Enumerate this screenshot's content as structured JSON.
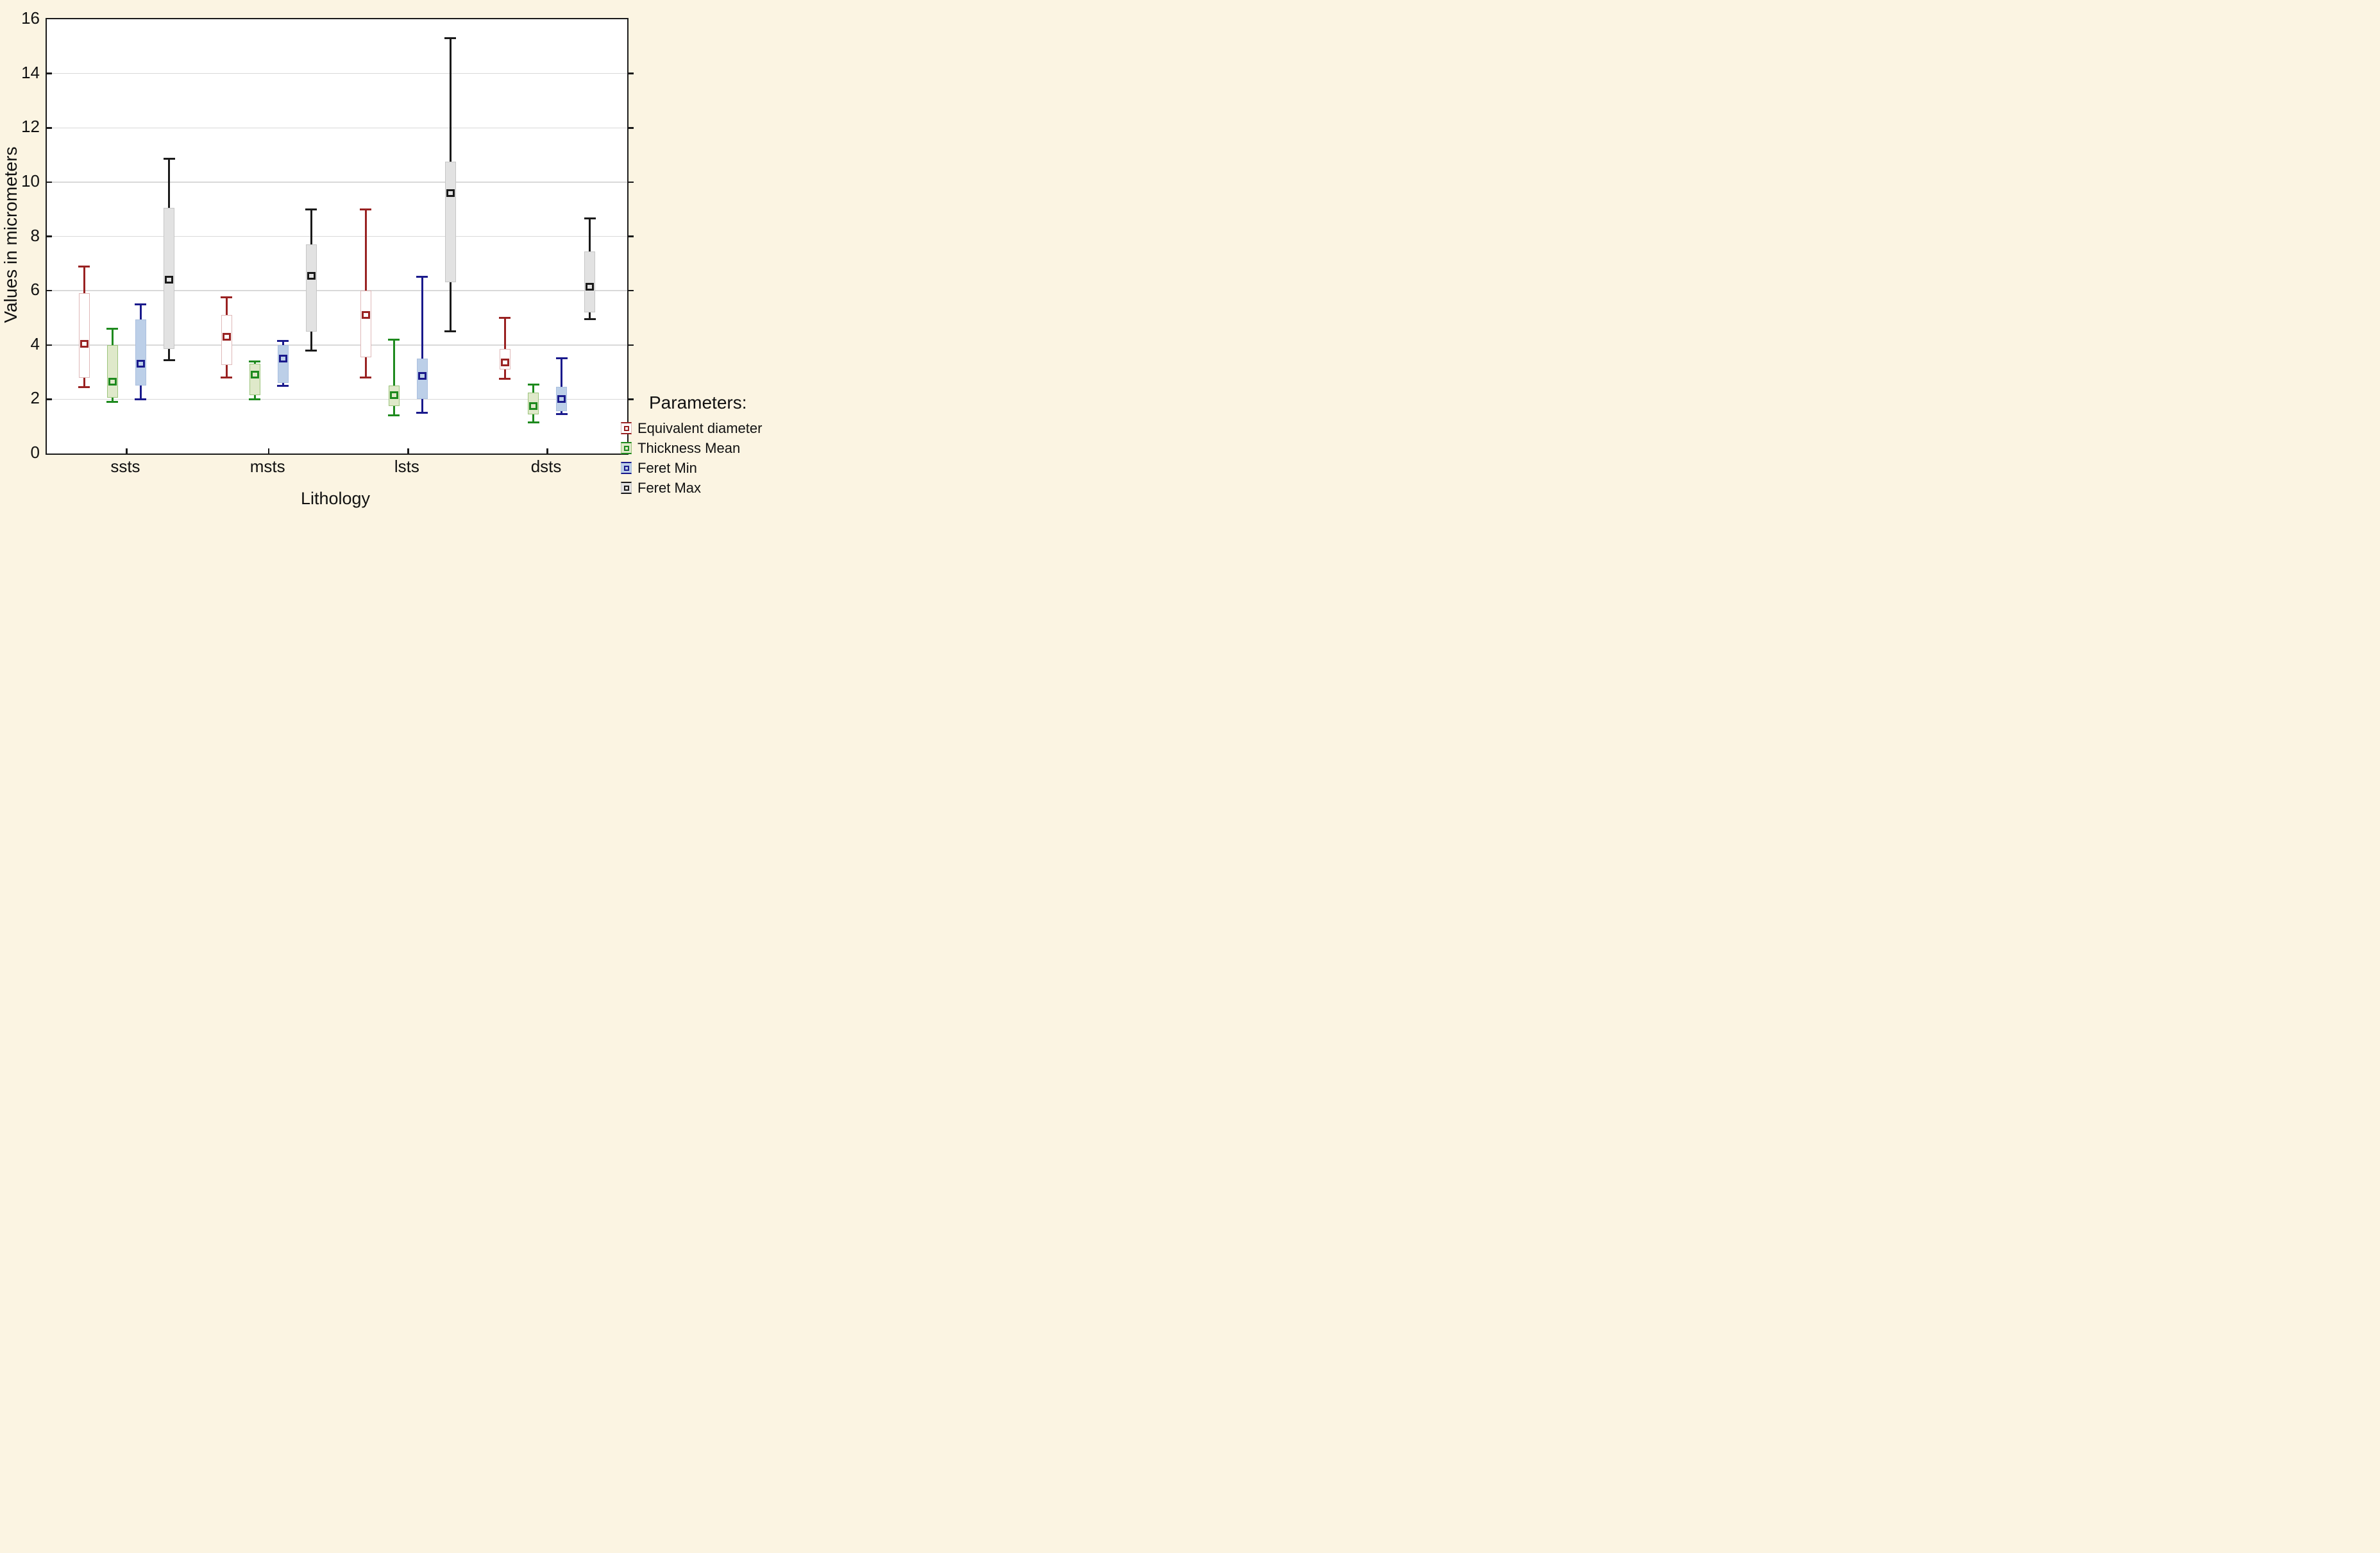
{
  "page": {
    "background_color": "#fbf4e2",
    "plot_background_color": "#ffffff",
    "frame_color": "#1a1a1a",
    "gridline_color": "#d9d9d9",
    "text_color": "#111111"
  },
  "chart_data": {
    "type": "box",
    "title": "",
    "xlabel": "Lithology",
    "ylabel": "Values in micrometers",
    "ylim": [
      0,
      16
    ],
    "yticks": [
      0,
      2,
      4,
      6,
      8,
      10,
      12,
      14,
      16
    ],
    "grid": "horizontal",
    "grid_color": "#d9d9d9",
    "categories": [
      "ssts",
      "msts",
      "lsts",
      "dsts"
    ],
    "group_center_fracs": [
      0.1375,
      0.3825,
      0.6225,
      0.8625
    ],
    "series_offset_fracs": [
      -0.073,
      -0.0243,
      0.0243,
      0.073
    ],
    "legend_title": "Parameters:",
    "legend_position": "right-bottom",
    "box_statistic_note": "square marker = mean, box = mean±SE style box, whiskers = min-max",
    "series": [
      {
        "name": "Equivalent diameter",
        "color": "#992222",
        "box_border": "#dfb8b8",
        "fill": "#ffffff",
        "boxes": [
          {
            "category": "ssts",
            "whisker_low": 2.45,
            "q1": 2.8,
            "mean": 4.05,
            "q3": 5.9,
            "whisker_high": 6.9
          },
          {
            "category": "msts",
            "whisker_low": 2.8,
            "q1": 3.25,
            "mean": 4.3,
            "q3": 5.1,
            "whisker_high": 5.75
          },
          {
            "category": "lsts",
            "whisker_low": 2.8,
            "q1": 3.55,
            "mean": 5.1,
            "q3": 6.0,
            "whisker_high": 9.0
          },
          {
            "category": "dsts",
            "whisker_low": 2.75,
            "q1": 3.1,
            "mean": 3.35,
            "q3": 3.85,
            "whisker_high": 5.0
          }
        ]
      },
      {
        "name": "Thickness Mean",
        "color": "#1e8a1e",
        "box_border": "#9cc47c",
        "fill": "#dfe9ca",
        "boxes": [
          {
            "category": "ssts",
            "whisker_low": 1.9,
            "q1": 2.05,
            "mean": 2.65,
            "q3": 4.0,
            "whisker_high": 4.6
          },
          {
            "category": "msts",
            "whisker_low": 2.0,
            "q1": 2.15,
            "mean": 2.9,
            "q3": 3.3,
            "whisker_high": 3.4
          },
          {
            "category": "lsts",
            "whisker_low": 1.4,
            "q1": 1.75,
            "mean": 2.15,
            "q3": 2.5,
            "whisker_high": 4.2
          },
          {
            "category": "dsts",
            "whisker_low": 1.15,
            "q1": 1.45,
            "mean": 1.75,
            "q3": 2.25,
            "whisker_high": 2.55
          }
        ]
      },
      {
        "name": "Feret Min",
        "color": "#1a1a8c",
        "box_border": "#aabfdf",
        "fill": "#bccfe8",
        "boxes": [
          {
            "category": "ssts",
            "whisker_low": 2.0,
            "q1": 2.5,
            "mean": 3.3,
            "q3": 4.95,
            "whisker_high": 5.5
          },
          {
            "category": "msts",
            "whisker_low": 2.5,
            "q1": 2.6,
            "mean": 3.5,
            "q3": 4.0,
            "whisker_high": 4.15
          },
          {
            "category": "lsts",
            "whisker_low": 1.5,
            "q1": 2.0,
            "mean": 2.85,
            "q3": 3.5,
            "whisker_high": 6.5
          },
          {
            "category": "dsts",
            "whisker_low": 1.45,
            "q1": 1.55,
            "mean": 2.0,
            "q3": 2.45,
            "whisker_high": 3.5
          }
        ]
      },
      {
        "name": "Feret Max",
        "color": "#1a1a1a",
        "box_border": "#c6c6c6",
        "fill": "#e2e2e2",
        "boxes": [
          {
            "category": "ssts",
            "whisker_low": 3.45,
            "q1": 3.85,
            "mean": 6.4,
            "q3": 9.05,
            "whisker_high": 10.85
          },
          {
            "category": "msts",
            "whisker_low": 3.8,
            "q1": 4.5,
            "mean": 6.55,
            "q3": 7.7,
            "whisker_high": 9.0
          },
          {
            "category": "lsts",
            "whisker_low": 4.5,
            "q1": 6.3,
            "mean": 9.6,
            "q3": 10.75,
            "whisker_high": 15.3
          },
          {
            "category": "dsts",
            "whisker_low": 4.95,
            "q1": 5.2,
            "mean": 6.15,
            "q3": 7.45,
            "whisker_high": 8.65
          }
        ]
      }
    ]
  }
}
